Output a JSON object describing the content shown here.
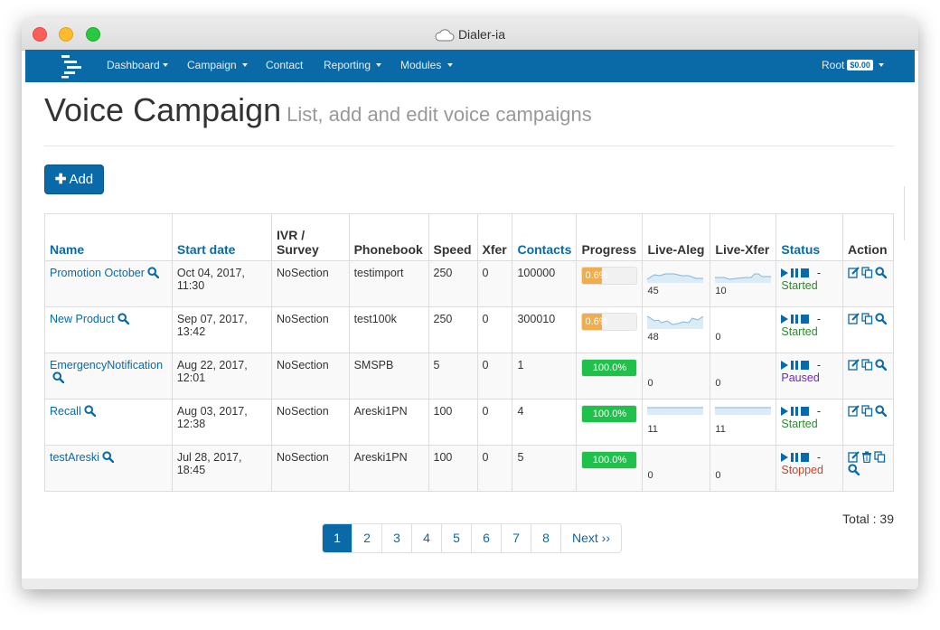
{
  "window": {
    "title": "Dialer-ia"
  },
  "navbar": {
    "items": [
      {
        "label": "Dashboard"
      },
      {
        "label": "Campaign"
      },
      {
        "label": "Contact"
      },
      {
        "label": "Reporting"
      },
      {
        "label": "Modules"
      }
    ],
    "user": {
      "label": "Root",
      "balance": "$0.00"
    }
  },
  "page": {
    "title": "Voice Campaign",
    "subtitle": "List, add and edit voice campaigns",
    "add_label": "Add"
  },
  "table": {
    "headers": [
      "Name",
      "Start date",
      "IVR / Survey",
      "Phonebook",
      "Speed",
      "Xfer",
      "Contacts",
      "Progress",
      "Live-Aleg",
      "Live-Xfer",
      "Status",
      "Action"
    ],
    "rows": [
      {
        "name": "Promotion October",
        "start_date": "Oct 04, 2017, 11:30",
        "ivr": "NoSection",
        "phonebook": "testimport",
        "speed": "250",
        "xfer": "0",
        "contacts": "100000",
        "progress": "0.6%",
        "progress_value": 0.6,
        "live_aleg": "45",
        "live_xfer": "10",
        "status": "Started"
      },
      {
        "name": "New Product",
        "start_date": "Sep 07, 2017, 13:42",
        "ivr": "NoSection",
        "phonebook": "test100k",
        "speed": "250",
        "xfer": "0",
        "contacts": "300010",
        "progress": "0.6%",
        "progress_value": 0.6,
        "live_aleg": "48",
        "live_xfer": "0",
        "status": "Started"
      },
      {
        "name": "EmergencyNotification",
        "start_date": "Aug 22, 2017, 12:01",
        "ivr": "NoSection",
        "phonebook": "SMSPB",
        "speed": "5",
        "xfer": "0",
        "contacts": "1",
        "progress": "100.0%",
        "progress_value": 100,
        "live_aleg": "0",
        "live_xfer": "0",
        "status": "Paused"
      },
      {
        "name": "Recall",
        "start_date": "Aug 03, 2017, 12:38",
        "ivr": "NoSection",
        "phonebook": "Areski1PN",
        "speed": "100",
        "xfer": "0",
        "contacts": "4",
        "progress": "100.0%",
        "progress_value": 100,
        "live_aleg": "11",
        "live_xfer": "11",
        "status": "Started"
      },
      {
        "name": "testAreski",
        "start_date": "Jul 28, 2017, 18:45",
        "ivr": "NoSection",
        "phonebook": "Areski1PN",
        "speed": "100",
        "xfer": "0",
        "contacts": "5",
        "progress": "100.0%",
        "progress_value": 100,
        "live_aleg": "0",
        "live_xfer": "0",
        "status": "Stopped"
      }
    ]
  },
  "footer": {
    "total": "Total : 39",
    "pages": [
      "1",
      "2",
      "3",
      "4",
      "5",
      "6",
      "7",
      "8"
    ],
    "next": "Next ››",
    "active_page": "1"
  },
  "colors": {
    "brand": "#0a6aa8",
    "progress_low": "#f0ad4e",
    "progress_full": "#1fc14a",
    "started": "#2d8a2d",
    "paused": "#6c2bc6",
    "stopped": "#d43f1f"
  }
}
